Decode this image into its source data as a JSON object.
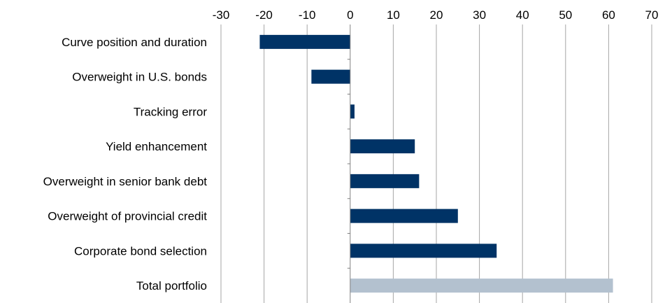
{
  "chart_data": {
    "type": "bar",
    "orientation": "horizontal",
    "title": "",
    "xlabel": "",
    "ylabel": "",
    "categories": [
      "Curve position and duration",
      "Overweight in U.S. bonds",
      "Tracking error",
      "Yield enhancement",
      "Overweight in senior bank debt",
      "Overweight of provincial credit",
      "Corporate bond selection",
      "Total portfolio"
    ],
    "values": [
      -21,
      -9,
      1,
      15,
      16,
      25,
      34,
      61
    ],
    "xlim": [
      -30,
      70
    ],
    "xticks": [
      "-30",
      "-20",
      "-10",
      "0",
      "10",
      "20",
      "30",
      "40",
      "50",
      "60",
      "70"
    ],
    "xtick_values": [
      -30,
      -20,
      -10,
      0,
      10,
      20,
      30,
      40,
      50,
      60,
      70
    ],
    "xaxis_position": "top",
    "grid": "vertical",
    "legend": "none",
    "colors": {
      "bar": "#003366",
      "total_bar": "#b3c1cf",
      "grid": "#a6a6a6",
      "axis": "#808080"
    }
  }
}
